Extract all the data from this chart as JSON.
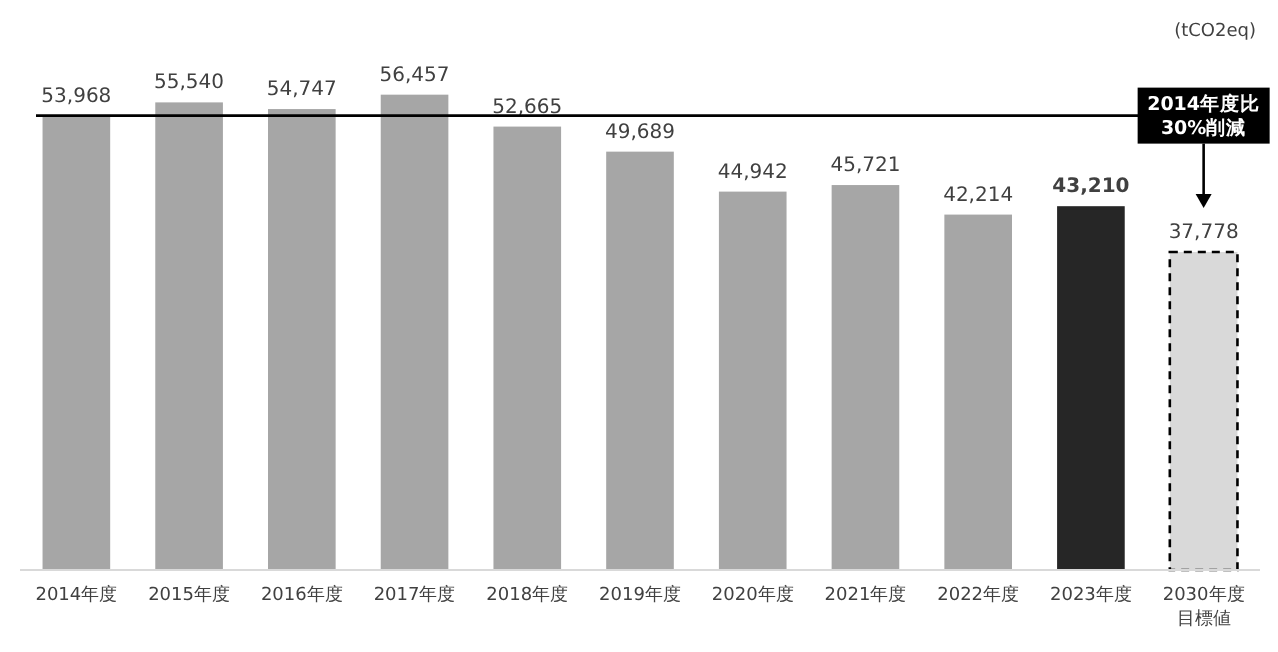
{
  "chart_data": {
    "type": "bar",
    "categories": [
      "2014年度",
      "2015年度",
      "2016年度",
      "2017年度",
      "2018年度",
      "2019年度",
      "2020年度",
      "2021年度",
      "2022年度",
      "2023年度",
      "2030年度目標値"
    ],
    "series": [
      {
        "color": "#a6a6a6",
        "values": [
          53968,
          55540,
          54747,
          56457,
          52665,
          49689,
          44942,
          45721,
          42214,
          null,
          null
        ],
        "value_labels": [
          "53,968",
          "55,540",
          "54,747",
          "56,457",
          "52,665",
          "49,689",
          "44,942",
          "45,721",
          "42,214",
          null,
          null
        ]
      },
      {
        "color": "#262626",
        "values": [
          null,
          null,
          null,
          null,
          null,
          null,
          null,
          null,
          null,
          43210,
          null
        ],
        "value_labels": [
          null,
          null,
          null,
          null,
          null,
          null,
          null,
          null,
          null,
          "43,210",
          null
        ]
      },
      {
        "color": "#d9d9d9",
        "line_style": "dashed",
        "values": [
          null,
          null,
          null,
          null,
          null,
          null,
          null,
          null,
          null,
          null,
          37778
        ],
        "value_labels": [
          null,
          null,
          null,
          null,
          null,
          null,
          null,
          null,
          null,
          null,
          "37,778"
        ]
      }
    ],
    "ref_lines": [
      {
        "axis": "y",
        "value": 53968,
        "color": "#000000"
      }
    ],
    "annotations": [
      "(tCO2eq)",
      {
        "text": "2014年度比\n30%削減",
        "x": "2030年度目標値",
        "y": 53968
      }
    ]
  }
}
